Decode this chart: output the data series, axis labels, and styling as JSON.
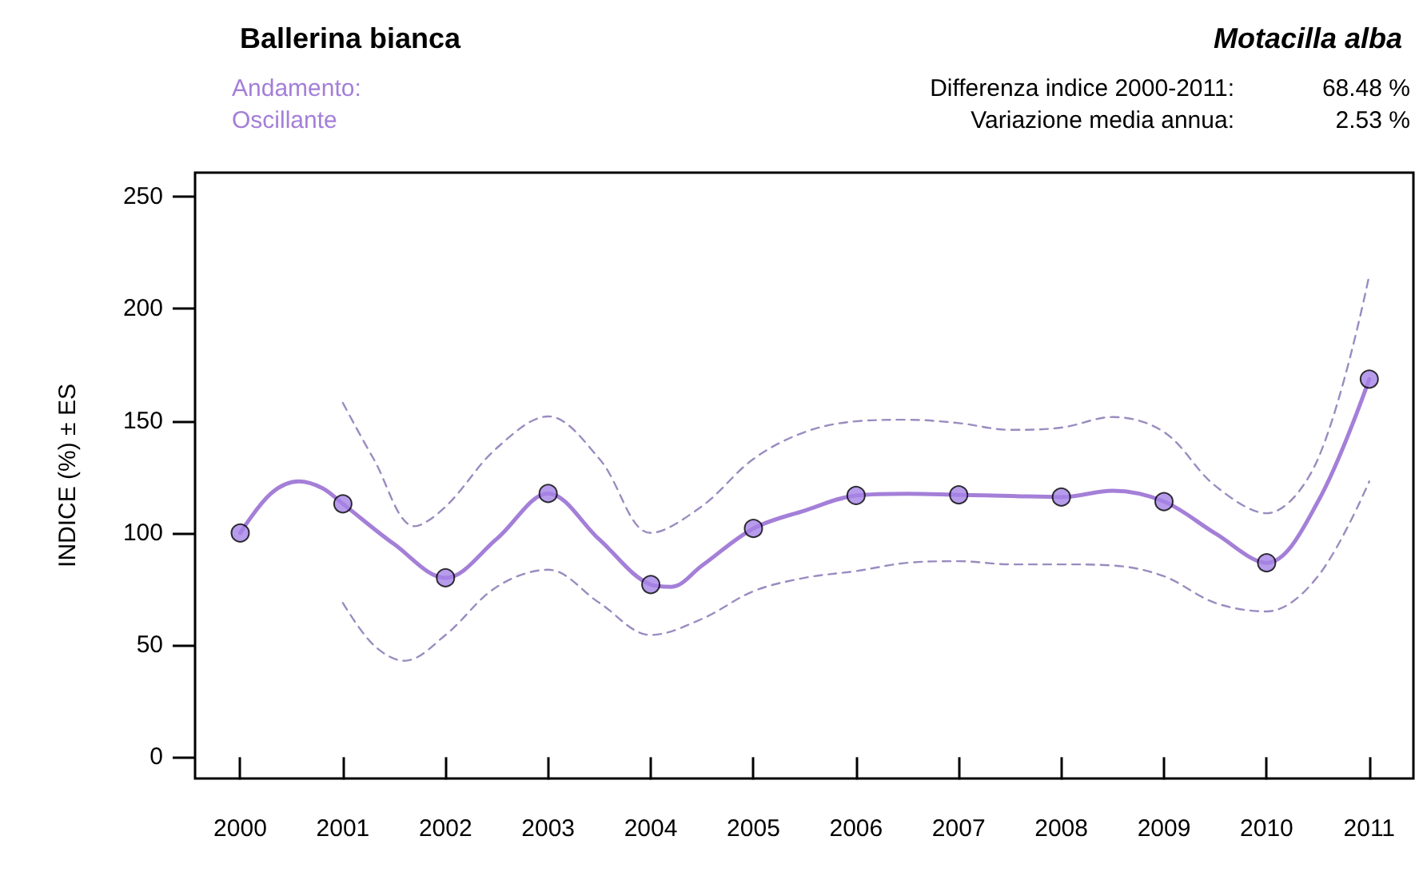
{
  "chart_data": {
    "type": "line",
    "title": "Ballerina bianca",
    "subtitle": "Motacilla alba",
    "ylabel": "INDICE (%) ± ES",
    "annotations": [
      "Andamento:",
      "Oscillante",
      "Differenza indice 2000-2011:",
      "68.48 %",
      "Variazione media annua:",
      "2.53 %"
    ],
    "xlim": [
      1999.56,
      2011.43
    ],
    "xticks": [
      2000,
      2001,
      2002,
      2003,
      2004,
      2005,
      2006,
      2007,
      2008,
      2009,
      2010,
      2011
    ],
    "ylim": [
      -9.5,
      260.7
    ],
    "yticks": [
      0,
      50,
      100,
      150,
      200,
      250
    ],
    "series": [
      {
        "color": "#a47fd8",
        "marker": "none",
        "line_style": "solid",
        "x": [
          2000,
          2000.3,
          2000.57,
          2000.8,
          2001,
          2001.5,
          2002,
          2002.5,
          2003,
          2003.5,
          2004,
          2004.2,
          2004.5,
          2005,
          2005.5,
          2006,
          2006.5,
          2007,
          2007.5,
          2008,
          2008.5,
          2009,
          2009.5,
          2010,
          2010.5,
          2011
        ],
        "values": [
          100,
          117.6,
          123,
          120,
          113,
          95,
          80,
          97.4,
          117.6,
          97,
          77,
          76,
          85.5,
          102,
          110,
          116.7,
          117.5,
          117,
          116.5,
          116,
          118.8,
          114,
          99.8,
          86.7,
          114,
          168.6
        ]
      },
      {
        "color": "#9a8cc0",
        "marker": "none",
        "line_style": "dashed",
        "x": [
          2001,
          2001.3,
          2001.7,
          2002,
          2002.5,
          2003,
          2003.5,
          2004,
          2004.5,
          2005,
          2005.5,
          2006,
          2006.5,
          2007,
          2007.5,
          2008,
          2008.5,
          2009,
          2009.5,
          2010,
          2010.5,
          2011
        ],
        "values": [
          158,
          133,
          103,
          111.7,
          137.9,
          152,
          133,
          100,
          112,
          133,
          145,
          149.8,
          150.5,
          149,
          146,
          147,
          151.7,
          145,
          121,
          108.8,
          133,
          215
        ]
      },
      {
        "color": "#9a8cc0",
        "marker": "none",
        "line_style": "dashed",
        "x": [
          2001,
          2001.3,
          2001.6,
          2002,
          2002.5,
          2003,
          2003.5,
          2004,
          2004.5,
          2005,
          2005.5,
          2006,
          2006.5,
          2007,
          2007.5,
          2008,
          2008.5,
          2009,
          2009.5,
          2010,
          2010.5,
          2011
        ],
        "values": [
          68.8,
          50,
          43,
          54.5,
          76,
          83.6,
          68.8,
          54.5,
          61.7,
          74,
          80,
          83,
          86.7,
          87.4,
          86,
          86,
          85.5,
          80.7,
          68.8,
          65,
          80.7,
          123
        ]
      },
      {
        "type": "scatter",
        "color": "#a583e6",
        "marker": "circle",
        "x": [
          2000,
          2001,
          2002,
          2003,
          2004,
          2005,
          2006,
          2007,
          2008,
          2009,
          2010,
          2011
        ],
        "values": [
          100,
          113,
          80,
          117.6,
          77,
          102,
          116.7,
          117,
          116,
          114,
          86.7,
          168.6
        ]
      }
    ]
  }
}
